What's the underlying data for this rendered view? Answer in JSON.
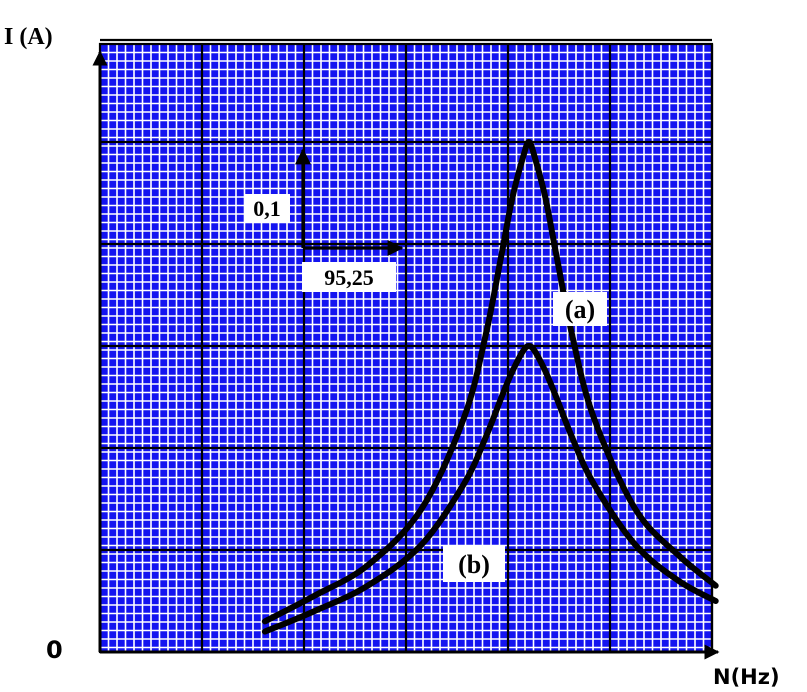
{
  "colors": {
    "plot_background": "#1414f0",
    "minor_grid": "#ffffff",
    "major_grid": "#000000",
    "curves": "#000000",
    "label_box": "#ffffff"
  },
  "chart_data": {
    "type": "line",
    "title": "",
    "ylabel": "I (A)",
    "xlabel": "N(Hz)",
    "origin_label": "0",
    "grid": true,
    "scale": {
      "y_per_division_label": "0,1",
      "x_per_division_label": "95,25",
      "y_per_division": 0.1,
      "x_per_division": 95.25
    },
    "xlim": [
      0,
      571.5
    ],
    "ylim": [
      0,
      0.6
    ],
    "series": [
      {
        "name": "(a)",
        "x": [
          154,
          200,
          250,
          300,
          340,
          360,
          375,
          385,
          395,
          400.5,
          406,
          416,
          426,
          441,
          461,
          500,
          540,
          575
        ],
        "y": [
          0.03,
          0.055,
          0.085,
          0.14,
          0.23,
          0.31,
          0.39,
          0.445,
          0.485,
          0.5,
          0.485,
          0.445,
          0.39,
          0.31,
          0.23,
          0.14,
          0.095,
          0.065
        ]
      },
      {
        "name": "(b)",
        "x": [
          154,
          200,
          250,
          300,
          340,
          360,
          375,
          385,
          395,
          400.5,
          406,
          416,
          426,
          441,
          461,
          500,
          540,
          575
        ],
        "y": [
          0.02,
          0.04,
          0.065,
          0.105,
          0.165,
          0.21,
          0.25,
          0.275,
          0.295,
          0.3,
          0.295,
          0.275,
          0.25,
          0.21,
          0.165,
          0.105,
          0.07,
          0.05
        ]
      }
    ]
  }
}
